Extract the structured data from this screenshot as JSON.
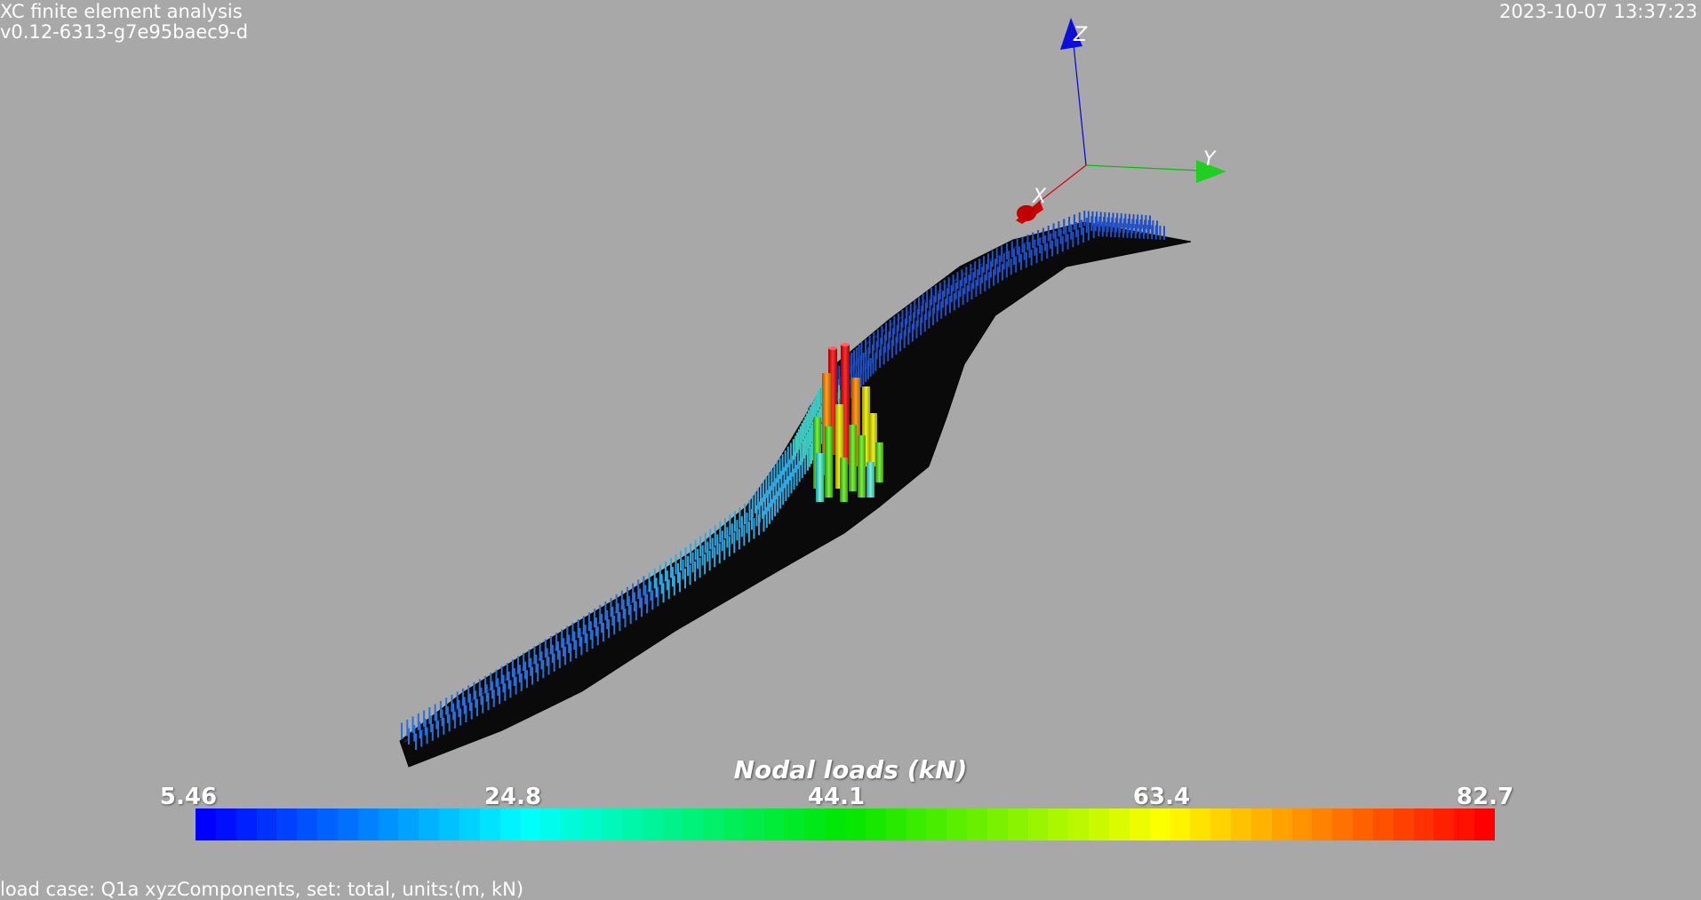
{
  "header": {
    "app_title": "XC finite element analysis",
    "version": "v0.12-6313-g7e95baec9-d",
    "timestamp": "2023-10-07 13:37:23"
  },
  "axes_triad": {
    "x_label": "X",
    "y_label": "Y",
    "z_label": "Z",
    "x_color": "#e00000",
    "y_color": "#00cc00",
    "z_color": "#0000e0"
  },
  "colorbar": {
    "title": "Nodal loads (kN)",
    "ticks": [
      "5.46",
      "24.8",
      "44.1",
      "63.4",
      "82.7"
    ],
    "range": [
      5.46,
      82.7
    ],
    "colormap": "blue-cyan-green-yellow-red",
    "segments": 64
  },
  "footer": {
    "caption": "load case: Q1a xyzComponents, set: total, units:(m, kN)"
  }
}
